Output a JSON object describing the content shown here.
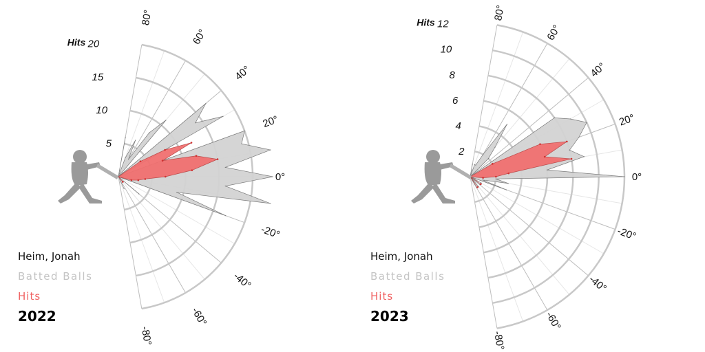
{
  "chart_data": [
    {
      "type": "polar",
      "title": "2022",
      "player": "Heim, Jonah",
      "legend": {
        "batted": "Batted Balls",
        "hits": "Hits"
      },
      "r_axis_label": "Hits",
      "r_ticks": [
        5,
        10,
        15,
        20
      ],
      "rlim": [
        0,
        20
      ],
      "angle_ticks": [
        80,
        60,
        40,
        20,
        0,
        -20,
        -40,
        -60,
        -80
      ],
      "angle_range": [
        -80,
        80
      ],
      "grid": true,
      "colors": {
        "batted": "#d3d3d3",
        "hits": "#f07070"
      },
      "series": [
        {
          "name": "Batted Balls",
          "points": [
            [
              80,
              6
            ],
            [
              70,
              3
            ],
            [
              65,
              6
            ],
            [
              60,
              3
            ],
            [
              55,
              8
            ],
            [
              50,
              11
            ],
            [
              40,
              17
            ],
            [
              35,
              14
            ],
            [
              30,
              18
            ],
            [
              20,
              20
            ],
            [
              15,
              19
            ],
            [
              10,
              23
            ],
            [
              5,
              16
            ],
            [
              0,
              23
            ],
            [
              -5,
              16
            ],
            [
              -10,
              23
            ],
            [
              -15,
              9
            ],
            [
              -20,
              17
            ],
            [
              -40,
              4
            ],
            [
              -65,
              2
            ]
          ]
        },
        {
          "name": "Hits",
          "points": [
            [
              35,
              4
            ],
            [
              30,
              8
            ],
            [
              25,
              12
            ],
            [
              20,
              7
            ],
            [
              15,
              12
            ],
            [
              10,
              15
            ],
            [
              5,
              11
            ],
            [
              0,
              7
            ],
            [
              -5,
              4
            ],
            [
              -10,
              3
            ],
            [
              -15,
              2
            ],
            [
              -50,
              1
            ]
          ]
        }
      ]
    },
    {
      "type": "polar",
      "title": "2023",
      "player": "Heim, Jonah",
      "legend": {
        "batted": "Batted Balls",
        "hits": "Hits"
      },
      "r_axis_label": "Hits",
      "r_ticks": [
        2,
        4,
        6,
        8,
        10,
        12
      ],
      "rlim": [
        0,
        12
      ],
      "angle_ticks": [
        80,
        60,
        40,
        20,
        0,
        -20,
        -40,
        -60,
        -80
      ],
      "angle_range": [
        -80,
        80
      ],
      "grid": true,
      "colors": {
        "batted": "#d3d3d3",
        "hits": "#f07070"
      },
      "series": [
        {
          "name": "Batted Balls",
          "points": [
            [
              80,
              1
            ],
            [
              70,
              1
            ],
            [
              65,
              1
            ],
            [
              60,
              2
            ],
            [
              55,
              5
            ],
            [
              50,
              3
            ],
            [
              45,
              2
            ],
            [
              35,
              8
            ],
            [
              30,
              9
            ],
            [
              25,
              10
            ],
            [
              20,
              9
            ],
            [
              15,
              8
            ],
            [
              10,
              9
            ],
            [
              5,
              6
            ],
            [
              0,
              12
            ],
            [
              -5,
              2
            ],
            [
              -10,
              3
            ],
            [
              -15,
              1
            ],
            [
              -20,
              3
            ],
            [
              -30,
              1
            ],
            [
              -40,
              1
            ],
            [
              -50,
              1
            ],
            [
              -60,
              1
            ]
          ]
        },
        {
          "name": "Hits",
          "points": [
            [
              30,
              2
            ],
            [
              25,
              6
            ],
            [
              20,
              8
            ],
            [
              15,
              6
            ],
            [
              10,
              8
            ],
            [
              5,
              3
            ],
            [
              0,
              2
            ],
            [
              -5,
              1
            ],
            [
              -35,
              1
            ],
            [
              -55,
              1
            ]
          ]
        }
      ]
    }
  ]
}
